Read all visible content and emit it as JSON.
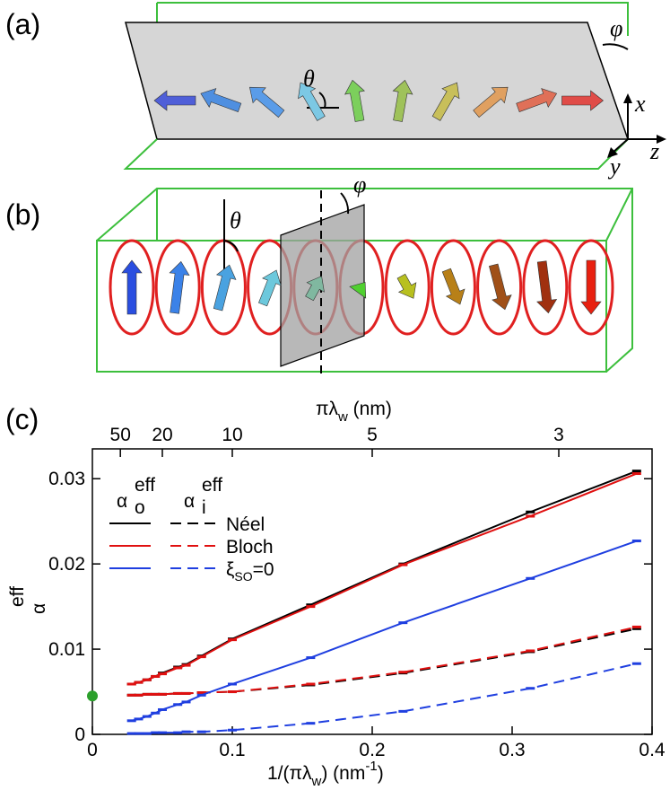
{
  "panels": {
    "a": {
      "label": "(a)",
      "theta": "θ",
      "phi": "φ",
      "axes": [
        "x",
        "y",
        "z"
      ]
    },
    "b": {
      "label": "(b)",
      "theta": "θ",
      "phi": "φ"
    },
    "c": {
      "label": "(c)"
    }
  },
  "chart_data": {
    "type": "line",
    "x_label": [
      "1/(πλ",
      "w",
      ") (nm",
      "-1",
      ")"
    ],
    "x2_label": [
      "πλ",
      "w",
      " (nm)"
    ],
    "y_label": {
      "symbol": "α",
      "sup": "eff"
    },
    "legend_columns": [
      {
        "symbol": "α",
        "sub": "o",
        "sup": "eff"
      },
      {
        "symbol": "α",
        "sub": "i",
        "sup": "eff"
      }
    ],
    "x": [
      0.028,
      0.033,
      0.039,
      0.045,
      0.05,
      0.061,
      0.067,
      0.078,
      0.1,
      0.156,
      0.222,
      0.313,
      0.389
    ],
    "series": [
      {
        "name": "Néel",
        "color": "#000000",
        "values": [
          0.0059,
          0.0061,
          0.0064,
          0.0068,
          0.0072,
          0.0079,
          0.0082,
          0.0092,
          0.0112,
          0.0152,
          0.02,
          0.0261,
          0.0309
        ],
        "values_i": [
          0.0046,
          0.0046,
          0.0047,
          0.0047,
          0.0047,
          0.0048,
          0.0048,
          0.0049,
          0.005,
          0.0058,
          0.0072,
          0.0097,
          0.0124
        ]
      },
      {
        "name": "Bloch",
        "color": "#e01010",
        "values": [
          0.0059,
          0.0061,
          0.0064,
          0.0068,
          0.0071,
          0.0078,
          0.0081,
          0.0091,
          0.0111,
          0.015,
          0.0199,
          0.0256,
          0.0306
        ],
        "values_i": [
          0.0046,
          0.0046,
          0.0047,
          0.0047,
          0.0047,
          0.0048,
          0.0048,
          0.0049,
          0.005,
          0.0059,
          0.0073,
          0.0098,
          0.0126
        ]
      },
      {
        "name": [
          "ξ",
          "SO",
          "=0"
        ],
        "color": "#1f3fe0",
        "values": [
          0.0016,
          0.0018,
          0.0021,
          0.0025,
          0.0029,
          0.0035,
          0.0038,
          0.0046,
          0.0059,
          0.009,
          0.0131,
          0.0183,
          0.0227
        ],
        "values_i": [
          0.0001,
          0.0001,
          0.0001,
          0.0002,
          0.0002,
          0.0002,
          0.0003,
          0.0003,
          0.0005,
          0.0013,
          0.0027,
          0.0054,
          0.0083
        ]
      }
    ],
    "reference_point": {
      "x": 0,
      "value": 0.0045,
      "color": "#2ca02c"
    },
    "xlim": [
      0,
      0.4
    ],
    "xticks": [
      0,
      0.1,
      0.2,
      0.3,
      0.4
    ],
    "ylim": [
      0,
      0.0335
    ],
    "yticks": [
      0,
      0.01,
      0.02,
      0.03
    ],
    "x2scale": "reciprocal",
    "x2ticks": [
      50,
      20,
      10,
      5,
      3
    ]
  }
}
